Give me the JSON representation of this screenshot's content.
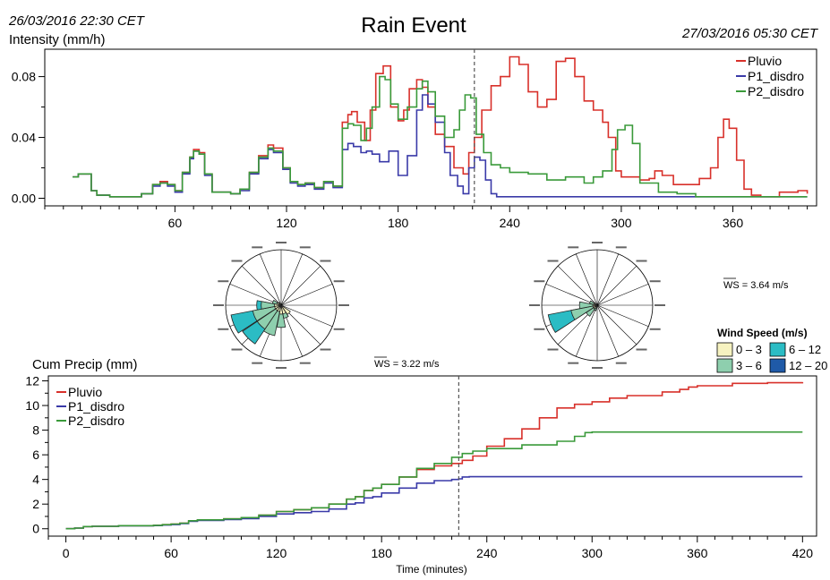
{
  "header": {
    "title": "Rain Event",
    "start_time": "26/03/2016 22:30 CET",
    "end_time": "27/03/2016 05:30 CET"
  },
  "colors": {
    "pluvio": "#d8302a",
    "p1": "#3a3aa8",
    "p2": "#3a9a3a",
    "ws_0_3": "#f6f2c0",
    "ws_3_6": "#8ecfae",
    "ws_6_12": "#2bbcc4",
    "ws_12_20": "#1f5aa8"
  },
  "chart_data": [
    {
      "type": "line",
      "id": "intensity",
      "ylabel": "Intensity (mm/h)",
      "xlim": [
        -10,
        405
      ],
      "ylim": [
        -0.005,
        0.098
      ],
      "yticks": [
        0.0,
        0.04,
        0.08
      ],
      "ytick_labels": [
        "0.00",
        "0.04",
        "0.08"
      ],
      "xticks": [
        60,
        120,
        180,
        240,
        300,
        360
      ],
      "xtick_labels": [
        "60",
        "120",
        "180",
        "240",
        "300",
        "360"
      ],
      "event_marker_x": 221,
      "legend_position": "top-right",
      "series": [
        {
          "name": "Pluvio",
          "color_key": "pluvio",
          "x": [
            5,
            8,
            12,
            15,
            18,
            25,
            35,
            42,
            48,
            52,
            56,
            60,
            64,
            68,
            70,
            73,
            76,
            80,
            85,
            90,
            95,
            100,
            105,
            110,
            113,
            118,
            122,
            126,
            130,
            135,
            140,
            145,
            150,
            153,
            155,
            158,
            162,
            165,
            168,
            172,
            176,
            180,
            183,
            186,
            190,
            193,
            196,
            200,
            205,
            210,
            215,
            218,
            221,
            225,
            230,
            235,
            240,
            245,
            250,
            255,
            260,
            265,
            270,
            275,
            280,
            285,
            290,
            293,
            297,
            300,
            305,
            310,
            315,
            318,
            322,
            328,
            335,
            342,
            348,
            352,
            355,
            358,
            362,
            366,
            370,
            375,
            385,
            395,
            400
          ],
          "y": [
            0.014,
            0.016,
            0.016,
            0.005,
            0.002,
            0.001,
            0.001,
            0.003,
            0.009,
            0.011,
            0.009,
            0.005,
            0.017,
            0.027,
            0.032,
            0.03,
            0.016,
            0.004,
            0.004,
            0.003,
            0.006,
            0.017,
            0.028,
            0.035,
            0.033,
            0.02,
            0.011,
            0.009,
            0.01,
            0.007,
            0.011,
            0.008,
            0.05,
            0.055,
            0.057,
            0.05,
            0.038,
            0.058,
            0.082,
            0.087,
            0.06,
            0.051,
            0.058,
            0.072,
            0.078,
            0.073,
            0.06,
            0.042,
            0.034,
            0.02,
            0.016,
            0.03,
            0.04,
            0.058,
            0.074,
            0.08,
            0.093,
            0.088,
            0.07,
            0.06,
            0.065,
            0.09,
            0.092,
            0.08,
            0.064,
            0.058,
            0.05,
            0.04,
            0.018,
            0.014,
            0.014,
            0.012,
            0.013,
            0.018,
            0.015,
            0.009,
            0.009,
            0.013,
            0.02,
            0.04,
            0.052,
            0.046,
            0.025,
            0.006,
            0.002,
            0.001,
            0.004,
            0.005,
            0.003
          ]
        },
        {
          "name": "P1_disdro",
          "color_key": "p1",
          "x": [
            5,
            8,
            12,
            15,
            18,
            25,
            35,
            42,
            48,
            52,
            56,
            60,
            64,
            68,
            70,
            73,
            76,
            80,
            85,
            90,
            95,
            100,
            105,
            110,
            113,
            118,
            122,
            126,
            130,
            135,
            140,
            145,
            150,
            153,
            156,
            160,
            163,
            166,
            170,
            175,
            180,
            185,
            190,
            193,
            196,
            200,
            205,
            208,
            212,
            215,
            218,
            221,
            224,
            227,
            230,
            233,
            240,
            260,
            300,
            360,
            400
          ],
          "y": [
            0.014,
            0.016,
            0.016,
            0.005,
            0.002,
            0.001,
            0.001,
            0.003,
            0.008,
            0.01,
            0.008,
            0.004,
            0.016,
            0.026,
            0.031,
            0.029,
            0.015,
            0.004,
            0.004,
            0.003,
            0.005,
            0.016,
            0.026,
            0.032,
            0.03,
            0.019,
            0.01,
            0.008,
            0.009,
            0.006,
            0.01,
            0.007,
            0.032,
            0.036,
            0.034,
            0.03,
            0.031,
            0.029,
            0.024,
            0.031,
            0.015,
            0.028,
            0.058,
            0.068,
            0.062,
            0.05,
            0.03,
            0.015,
            0.008,
            0.003,
            0.02,
            0.027,
            0.025,
            0.012,
            0.003,
            0.001,
            0.001,
            0.001,
            0.001,
            0.001,
            0.001
          ]
        },
        {
          "name": "P2_disdro",
          "color_key": "p2",
          "x": [
            5,
            8,
            12,
            15,
            18,
            25,
            35,
            42,
            48,
            52,
            56,
            60,
            64,
            68,
            70,
            73,
            76,
            80,
            85,
            90,
            95,
            100,
            105,
            110,
            113,
            118,
            122,
            126,
            130,
            135,
            140,
            145,
            150,
            153,
            156,
            160,
            163,
            166,
            170,
            173,
            176,
            180,
            185,
            190,
            193,
            196,
            200,
            205,
            210,
            213,
            216,
            219,
            222,
            226,
            230,
            235,
            240,
            250,
            260,
            270,
            280,
            285,
            290,
            295,
            298,
            302,
            306,
            310,
            320,
            330,
            340,
            360,
            380,
            400
          ],
          "y": [
            0.014,
            0.016,
            0.016,
            0.005,
            0.002,
            0.001,
            0.001,
            0.003,
            0.009,
            0.01,
            0.009,
            0.005,
            0.017,
            0.027,
            0.031,
            0.029,
            0.016,
            0.004,
            0.004,
            0.003,
            0.006,
            0.017,
            0.027,
            0.033,
            0.031,
            0.02,
            0.011,
            0.009,
            0.01,
            0.007,
            0.011,
            0.008,
            0.046,
            0.049,
            0.048,
            0.038,
            0.046,
            0.06,
            0.08,
            0.078,
            0.062,
            0.052,
            0.06,
            0.072,
            0.077,
            0.07,
            0.054,
            0.04,
            0.045,
            0.058,
            0.068,
            0.066,
            0.042,
            0.03,
            0.022,
            0.02,
            0.017,
            0.016,
            0.012,
            0.014,
            0.01,
            0.014,
            0.018,
            0.032,
            0.045,
            0.048,
            0.036,
            0.01,
            0.004,
            0.003,
            0.001,
            0.001,
            0.001,
            0.001
          ]
        }
      ]
    },
    {
      "type": "line",
      "id": "cumulative",
      "ylabel": "Cum Precip (mm)",
      "xlabel": "Time (minutes)",
      "xlim": [
        -10,
        428
      ],
      "ylim": [
        -0.6,
        12.4
      ],
      "yticks": [
        0,
        2,
        4,
        6,
        8,
        10,
        12
      ],
      "ytick_labels": [
        "0",
        "2",
        "4",
        "6",
        "8",
        "10",
        "12"
      ],
      "xticks": [
        0,
        60,
        120,
        180,
        240,
        300,
        360,
        420
      ],
      "xtick_labels": [
        "0",
        "60",
        "120",
        "180",
        "240",
        "300",
        "360",
        "420"
      ],
      "event_marker_x": 224,
      "legend_position": "top-left",
      "series": [
        {
          "name": "Pluvio",
          "color_key": "pluvio",
          "x": [
            0,
            5,
            10,
            15,
            30,
            50,
            55,
            60,
            65,
            70,
            75,
            90,
            100,
            110,
            120,
            130,
            140,
            150,
            160,
            165,
            170,
            175,
            180,
            190,
            200,
            210,
            220,
            226,
            232,
            240,
            250,
            260,
            270,
            280,
            290,
            300,
            310,
            320,
            340,
            350,
            355,
            360,
            380,
            400,
            420
          ],
          "y": [
            0,
            0.05,
            0.18,
            0.2,
            0.25,
            0.28,
            0.33,
            0.38,
            0.45,
            0.65,
            0.72,
            0.8,
            0.9,
            1.1,
            1.4,
            1.55,
            1.7,
            2.0,
            2.4,
            2.6,
            3.1,
            3.3,
            3.6,
            4.2,
            4.8,
            5.1,
            5.3,
            5.55,
            5.9,
            6.7,
            7.3,
            8.1,
            9.0,
            9.8,
            10.1,
            10.3,
            10.6,
            10.8,
            11.1,
            11.3,
            11.5,
            11.6,
            11.8,
            11.85,
            11.9
          ]
        },
        {
          "name": "P1_disdro",
          "color_key": "p1",
          "x": [
            0,
            5,
            10,
            15,
            30,
            50,
            55,
            60,
            65,
            70,
            75,
            90,
            100,
            110,
            120,
            130,
            140,
            150,
            160,
            165,
            170,
            175,
            180,
            190,
            200,
            210,
            220,
            224,
            226,
            230,
            260,
            300,
            360,
            420
          ],
          "y": [
            0,
            0.05,
            0.18,
            0.2,
            0.24,
            0.26,
            0.3,
            0.34,
            0.42,
            0.6,
            0.68,
            0.75,
            0.82,
            1.0,
            1.2,
            1.3,
            1.4,
            1.6,
            2.0,
            2.1,
            2.5,
            2.6,
            2.9,
            3.3,
            3.7,
            3.9,
            4.0,
            4.05,
            4.2,
            4.22,
            4.22,
            4.22,
            4.22,
            4.22
          ]
        },
        {
          "name": "P2_disdro",
          "color_key": "p2",
          "x": [
            0,
            5,
            10,
            15,
            30,
            50,
            55,
            60,
            65,
            70,
            75,
            90,
            100,
            110,
            120,
            130,
            140,
            150,
            160,
            165,
            170,
            175,
            180,
            190,
            200,
            210,
            220,
            226,
            232,
            240,
            260,
            280,
            290,
            296,
            300,
            310,
            360,
            420
          ],
          "y": [
            0,
            0.05,
            0.18,
            0.2,
            0.25,
            0.28,
            0.33,
            0.38,
            0.45,
            0.65,
            0.72,
            0.8,
            0.9,
            1.1,
            1.4,
            1.55,
            1.7,
            2.0,
            2.4,
            2.6,
            3.1,
            3.3,
            3.6,
            4.2,
            4.9,
            5.3,
            5.8,
            6.1,
            6.3,
            6.5,
            6.8,
            7.1,
            7.5,
            7.8,
            7.85,
            7.85,
            7.85,
            7.85
          ]
        }
      ]
    },
    {
      "type": "wind-rose",
      "id": "rose-1",
      "ws_label": "WS = 3.22 m/s",
      "radius_max": 5,
      "petals": [
        {
          "dir": 248,
          "width": 22,
          "levels": [
            0.6,
            2.6,
            4.6,
            0
          ]
        },
        {
          "dir": 225,
          "width": 22,
          "levels": [
            0.6,
            2.6,
            4.2,
            0
          ]
        },
        {
          "dir": 203,
          "width": 22,
          "levels": [
            0.6,
            2.8,
            0,
            0
          ]
        },
        {
          "dir": 180,
          "width": 22,
          "levels": [
            0.8,
            2.0,
            0,
            0
          ]
        },
        {
          "dir": 158,
          "width": 22,
          "levels": [
            0.8,
            1.2,
            0,
            0
          ]
        },
        {
          "dir": 135,
          "width": 22,
          "levels": [
            1.0,
            0,
            0,
            0
          ]
        },
        {
          "dir": 270,
          "width": 22,
          "levels": [
            0.6,
            1.8,
            2.2,
            0
          ]
        },
        {
          "dir": 293,
          "width": 22,
          "levels": [
            0.4,
            0.8,
            0,
            0
          ]
        },
        {
          "dir": 315,
          "width": 22,
          "levels": [
            0.3,
            0,
            0,
            0
          ]
        }
      ]
    },
    {
      "type": "wind-rose",
      "id": "rose-2",
      "ws_label": "WS = 3.64 m/s",
      "radius_max": 5,
      "petals": [
        {
          "dir": 248,
          "width": 22,
          "levels": [
            0.4,
            2.4,
            4.5,
            0
          ]
        },
        {
          "dir": 270,
          "width": 22,
          "levels": [
            0.4,
            1.6,
            0,
            0
          ]
        },
        {
          "dir": 225,
          "width": 22,
          "levels": [
            0.4,
            1.2,
            0,
            0
          ]
        },
        {
          "dir": 293,
          "width": 22,
          "levels": [
            0.3,
            0.7,
            0,
            0
          ]
        },
        {
          "dir": 203,
          "width": 22,
          "levels": [
            0.3,
            0.5,
            0,
            0
          ]
        }
      ]
    }
  ],
  "wind_legend": {
    "title": "Wind Speed (m/s)",
    "items": [
      {
        "label": "0 – 3",
        "color_key": "ws_0_3"
      },
      {
        "label": "3 – 6",
        "color_key": "ws_3_6"
      },
      {
        "label": "6 – 12",
        "color_key": "ws_6_12"
      },
      {
        "label": "12 – 20",
        "color_key": "ws_12_20"
      }
    ]
  }
}
